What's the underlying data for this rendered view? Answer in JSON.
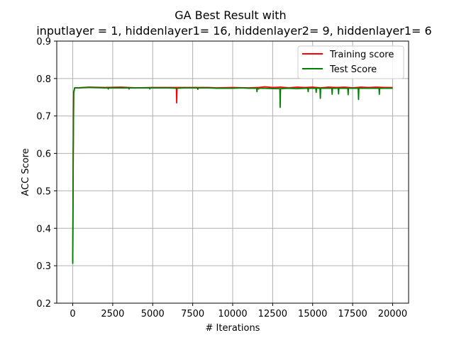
{
  "chart_data": {
    "type": "line",
    "title_line1": "GA Best Result with",
    "title_line2": "inputlayer = 1, hiddenlayer1= 16, hiddenlayer2= 9, hiddenlayer1= 6",
    "xlabel": "# Iterations",
    "ylabel": "ACC Score",
    "xlim": [
      -1000,
      21000
    ],
    "ylim": [
      0.2,
      0.9
    ],
    "xticks": [
      0,
      2500,
      5000,
      7500,
      10000,
      12500,
      15000,
      17500,
      20000
    ],
    "yticks": [
      0.2,
      0.3,
      0.4,
      0.5,
      0.6,
      0.7,
      0.8,
      0.9
    ],
    "grid": true,
    "legend_position": "top-right",
    "series": [
      {
        "name": "Training score",
        "color": "#ff0000",
        "x": [
          0,
          30,
          60,
          120,
          300,
          1000,
          2000,
          3000,
          4000,
          5000,
          6000,
          6480,
          6500,
          6520,
          6540,
          7000,
          7800,
          7820,
          7840,
          8500,
          9000,
          10000,
          11000,
          11600,
          11620,
          11640,
          12000,
          12500,
          13000,
          13500,
          14000,
          14500,
          15000,
          15500,
          16000,
          16500,
          17000,
          17500,
          18000,
          18500,
          19000,
          19500,
          20000
        ],
        "values": [
          0.31,
          0.6,
          0.76,
          0.775,
          0.775,
          0.777,
          0.776,
          0.777,
          0.775,
          0.776,
          0.776,
          0.776,
          0.735,
          0.776,
          0.776,
          0.776,
          0.776,
          0.771,
          0.776,
          0.776,
          0.775,
          0.776,
          0.775,
          0.776,
          0.772,
          0.776,
          0.778,
          0.776,
          0.777,
          0.775,
          0.777,
          0.776,
          0.777,
          0.775,
          0.777,
          0.776,
          0.777,
          0.775,
          0.777,
          0.776,
          0.777,
          0.776,
          0.776
        ]
      },
      {
        "name": "Test Score",
        "color": "#008000",
        "x": [
          0,
          30,
          60,
          120,
          300,
          1000,
          2000,
          2200,
          2220,
          2240,
          3000,
          3500,
          3520,
          3540,
          4000,
          4800,
          4820,
          4840,
          5500,
          6000,
          6500,
          7000,
          7800,
          7820,
          7840,
          8500,
          9000,
          9500,
          10000,
          10500,
          11000,
          11500,
          11520,
          11540,
          12000,
          12500,
          12950,
          12970,
          12990,
          13500,
          14000,
          14500,
          14700,
          14720,
          14740,
          15000,
          15200,
          15220,
          15240,
          15460,
          15480,
          15500,
          16000,
          16200,
          16220,
          16240,
          16600,
          16620,
          16640,
          17000,
          17200,
          17220,
          17240,
          17500,
          17850,
          17870,
          17890,
          18500,
          19000,
          19150,
          19170,
          19190,
          19500,
          20000
        ],
        "values": [
          0.305,
          0.6,
          0.765,
          0.775,
          0.775,
          0.776,
          0.775,
          0.775,
          0.772,
          0.775,
          0.775,
          0.775,
          0.772,
          0.775,
          0.775,
          0.775,
          0.772,
          0.775,
          0.775,
          0.775,
          0.774,
          0.775,
          0.775,
          0.772,
          0.775,
          0.775,
          0.774,
          0.774,
          0.774,
          0.775,
          0.774,
          0.774,
          0.765,
          0.774,
          0.774,
          0.773,
          0.773,
          0.723,
          0.773,
          0.774,
          0.773,
          0.774,
          0.774,
          0.765,
          0.774,
          0.774,
          0.774,
          0.763,
          0.774,
          0.774,
          0.747,
          0.774,
          0.774,
          0.774,
          0.758,
          0.774,
          0.774,
          0.759,
          0.774,
          0.774,
          0.774,
          0.757,
          0.774,
          0.774,
          0.774,
          0.744,
          0.774,
          0.774,
          0.774,
          0.774,
          0.758,
          0.774,
          0.774,
          0.774
        ]
      }
    ]
  }
}
